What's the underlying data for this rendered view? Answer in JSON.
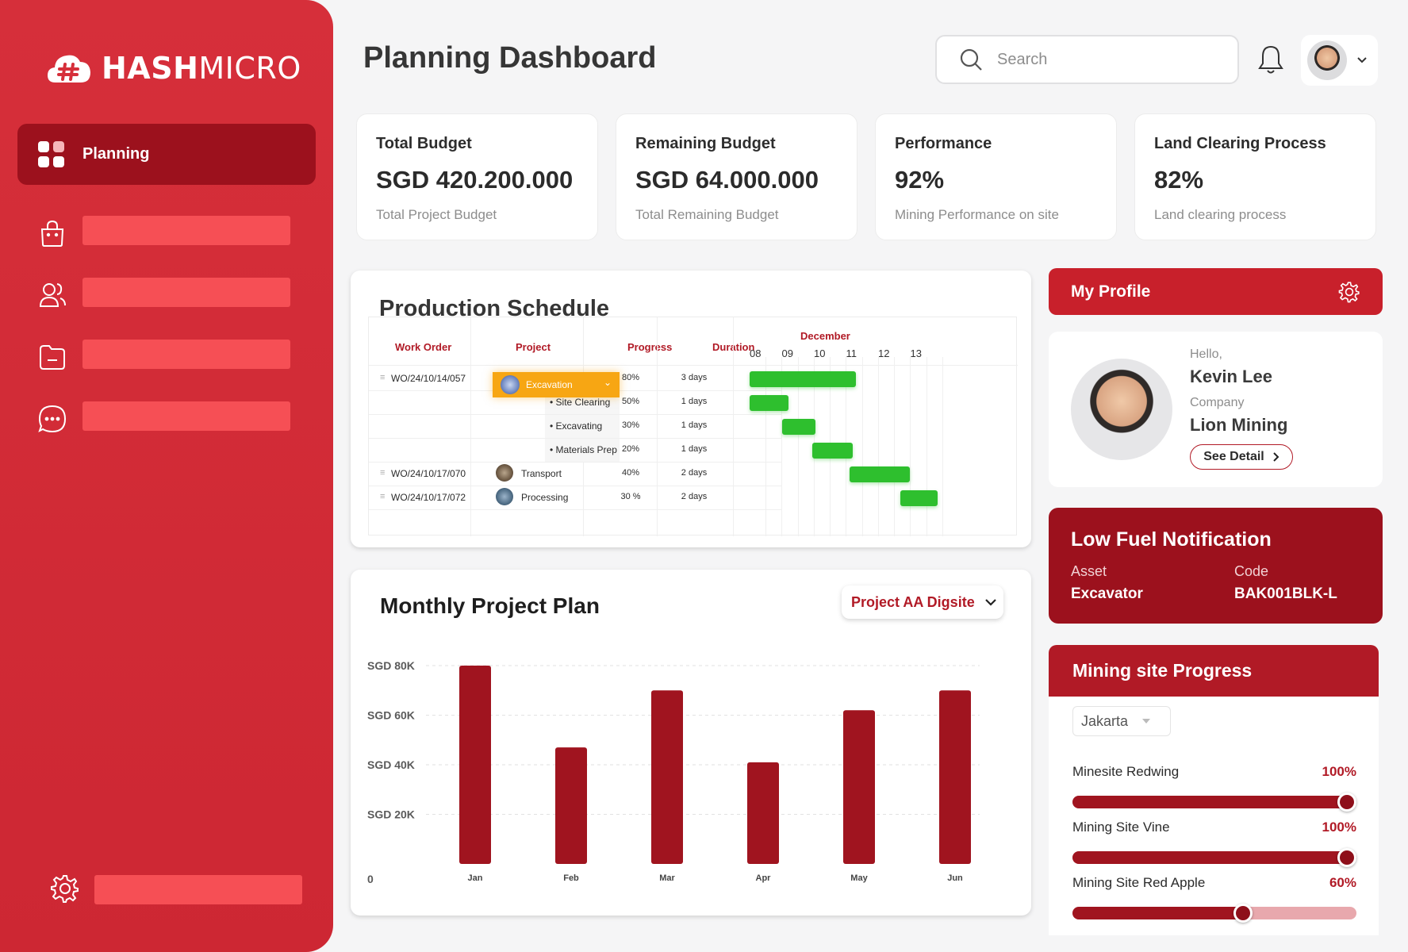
{
  "brand": {
    "name_bold": "HASH",
    "name_light": "MICRO"
  },
  "sidebar": {
    "active_label": "Planning",
    "items": [
      "bag-icon",
      "users-icon",
      "folder-icon",
      "chat-icon"
    ],
    "settings_icon": "gear-icon"
  },
  "header": {
    "title": "Planning Dashboard",
    "search_placeholder": "Search"
  },
  "stats": [
    {
      "title": "Total Budget",
      "value": "SGD 420.200.000",
      "sub": "Total Project Budget"
    },
    {
      "title": "Remaining Budget",
      "value": "SGD 64.000.000",
      "sub": "Total Remaining Budget"
    },
    {
      "title": "Performance",
      "value": "92%",
      "sub": "Mining Performance on site"
    },
    {
      "title": "Land Clearing Process",
      "value": "82%",
      "sub": "Land clearing process"
    }
  ],
  "schedule": {
    "title": "Production Schedule",
    "columns": {
      "work_order": "Work Order",
      "project": "Project",
      "progress": "Progress",
      "duration": "Duration"
    },
    "month": "December",
    "days": [
      "08",
      "09",
      "10",
      "11",
      "12",
      "13"
    ],
    "rows": [
      {
        "wo": "WO/24/10/14/057",
        "project": "Excavation",
        "progress": "80%",
        "duration": "3 days",
        "start_day": 0.0,
        "span_days": 3.3
      },
      {
        "wo": "",
        "project": "• Site Clearing",
        "progress": "50%",
        "duration": "1 days",
        "start_day": 0.0,
        "span_days": 1.2
      },
      {
        "wo": "",
        "project": "• Excavating",
        "progress": "30%",
        "duration": "1 days",
        "start_day": 1.0,
        "span_days": 1.05
      },
      {
        "wo": "",
        "project": "• Materials Prep",
        "progress": "20%",
        "duration": "1 days",
        "start_day": 1.95,
        "span_days": 1.25
      },
      {
        "wo": "WO/24/10/17/070",
        "project": "Transport",
        "progress": "40%",
        "duration": "2 days",
        "start_day": 3.1,
        "span_days": 1.9
      },
      {
        "wo": "WO/24/10/17/072",
        "project": "Processing",
        "progress": "30 %",
        "duration": "2 days",
        "start_day": 4.7,
        "span_days": 1.15
      }
    ]
  },
  "monthly": {
    "title": "Monthly Project Plan",
    "select_value": "Project AA Digsite"
  },
  "chart_data": {
    "type": "bar",
    "categories": [
      "Jan",
      "Feb",
      "Mar",
      "Apr",
      "May",
      "Jun"
    ],
    "values": [
      80000,
      47000,
      70000,
      41000,
      62000,
      70000
    ],
    "y_ticks": [
      "0",
      "SGD 20K",
      "SGD 40K",
      "SGD 60K",
      "SGD 80K"
    ],
    "ylim": [
      0,
      80000
    ],
    "grid": true,
    "bar_color": "#a0141f"
  },
  "profile": {
    "header": "My Profile",
    "hello_label": "Hello,",
    "name": "Kevin Lee",
    "company_label": "Company",
    "company": "Lion Mining",
    "detail_button": "See Detail"
  },
  "fuel": {
    "title": "Low Fuel Notification",
    "asset_label": "Asset",
    "asset": "Excavator",
    "code_label": "Code",
    "code": "BAK001BLK-L"
  },
  "mining": {
    "title": "Mining site Progress",
    "location": "Jakarta",
    "sites": [
      {
        "name": "Minesite Redwing",
        "pct_label": "100%",
        "value": 1.0
      },
      {
        "name": "Mining Site Vine",
        "pct_label": "100%",
        "value": 1.0
      },
      {
        "name": "Mining Site Red Apple",
        "pct_label": "60%",
        "value": 0.6
      }
    ]
  },
  "colors": {
    "primary": "#d62f3a",
    "dark_red": "#9c111d",
    "accent_red": "#b11a26",
    "gantt_green": "#2ebf2e",
    "orange": "#f7a613"
  }
}
